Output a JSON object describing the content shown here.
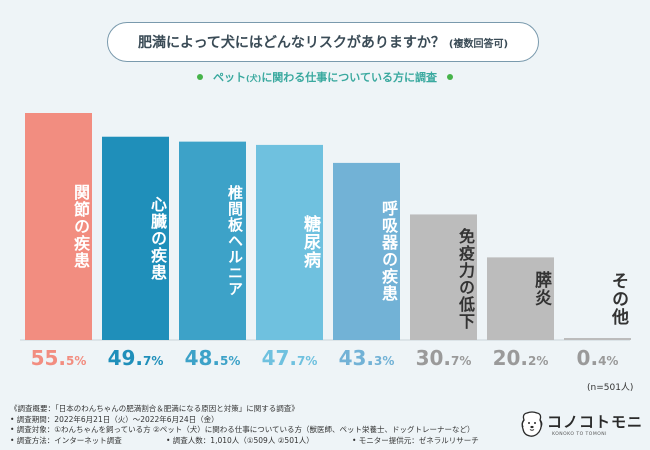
{
  "header": {
    "title": "肥満によって犬にはどんなリスクがありますか？",
    "title_note": "(複数回答可)",
    "subtitle_pre": "ペット",
    "subtitle_mid": "(犬)",
    "subtitle_post": "に関わる仕事についている方に調査"
  },
  "chart_data": {
    "type": "bar",
    "title": "肥満によって犬にはどんなリスクがありますか？(複数回答可)",
    "categories": [
      "関節の疾患",
      "心臓の疾患",
      "椎間板ヘルニア",
      "糖尿病",
      "呼吸器の疾患",
      "免疫力の低下",
      "膵炎",
      "その他"
    ],
    "values": [
      55.5,
      49.7,
      48.5,
      47.7,
      43.3,
      30.7,
      20.2,
      0.4
    ],
    "value_int": [
      "55.",
      "49.",
      "48.",
      "47.",
      "43.",
      "30.",
      "20.",
      "0."
    ],
    "value_dec": [
      "5%",
      "7%",
      "5%",
      "7%",
      "3%",
      "7%",
      "2%",
      "4%"
    ],
    "bar_colors": [
      "#f28d80",
      "#1f8fba",
      "#3da2c8",
      "#6fc1df",
      "#72b2d6",
      "#bcbcbc",
      "#bcbcbc",
      "#bcbcbc"
    ],
    "label_colors": [
      "#ffffff",
      "#ffffff",
      "#ffffff",
      "#ffffff",
      "#ffffff",
      "#333333",
      "#333333",
      "#333333"
    ],
    "value_colors": [
      "#f28d80",
      "#1f8fba",
      "#3da2c8",
      "#6fc1df",
      "#72b2d6",
      "#9a9a9a",
      "#9a9a9a",
      "#9a9a9a"
    ],
    "ylim": [
      0,
      55.5
    ],
    "grid": false,
    "note": "(n=501人)"
  },
  "footer": {
    "line1": "《調査概要：「日本のわんちゃんの肥満割合＆肥満になる原因と対策」に関する調査》",
    "line2": "• 調査期間：2022年6月21日（火）～2022年6月24日（金）",
    "line3": "• 調査対象：①わんちゃんを飼っている方 ②ペット（犬）に関わる仕事についている方（獣医師、ペット栄養士、ドッグトレーナーなど）",
    "line4a": "• 調査方法：インターネット調査",
    "line4b": "• 調査人数：1,010人（①509人 ②501人）",
    "line4c": "• モニター提供元：ゼネラルリサーチ"
  },
  "logo": {
    "name": "コノコトモニ",
    "tagline": "KONOKO TO TOMONI"
  },
  "colors": {
    "background": "#eef4f7",
    "accent_green": "#3aa99f"
  }
}
